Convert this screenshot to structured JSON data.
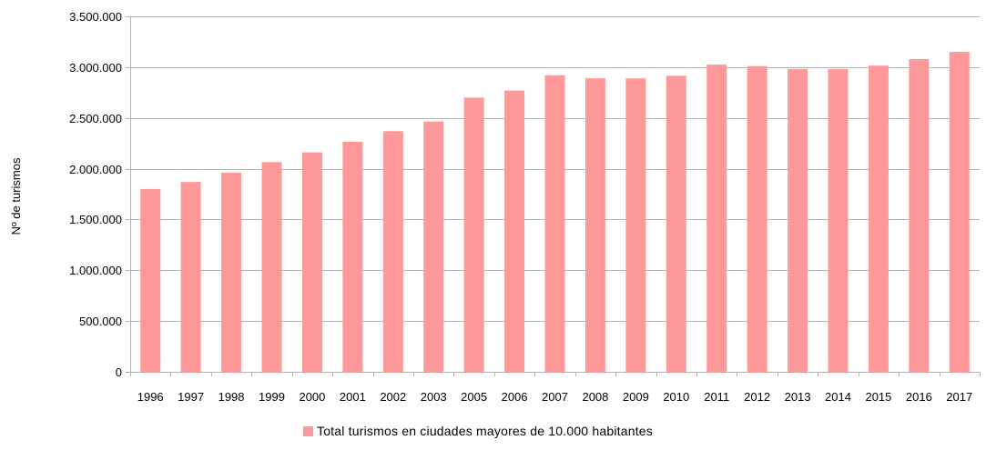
{
  "chart_data": {
    "type": "bar",
    "ylabel": "Nº de turismos",
    "categories": [
      "1996",
      "1997",
      "1998",
      "1999",
      "2000",
      "2001",
      "2002",
      "2003",
      "2005",
      "2006",
      "2007",
      "2008",
      "2009",
      "2010",
      "2011",
      "2012",
      "2013",
      "2014",
      "2015",
      "2016",
      "2017"
    ],
    "series": [
      {
        "name": "Total turismos en ciudades mayores de 10.000 habitantes",
        "color": "#ff9999",
        "values": [
          1800000,
          1870000,
          1960000,
          2065000,
          2160000,
          2265000,
          2370000,
          2465000,
          2700000,
          2770000,
          2920000,
          2890000,
          2890000,
          2915000,
          3025000,
          3010000,
          2980000,
          2980000,
          3015000,
          3080000,
          3150000
        ]
      }
    ],
    "ylim": [
      0,
      3500000
    ],
    "yticks": [
      0,
      500000,
      1000000,
      1500000,
      2000000,
      2500000,
      3000000,
      3500000
    ],
    "ytick_labels": [
      "0",
      "500.000",
      "1.000.000",
      "1.500.000",
      "2.000.000",
      "2.500.000",
      "3.000.000",
      "3.500.000"
    ],
    "grid": true,
    "legend_position": "bottom-center",
    "colors": {
      "bar": "#ff9999",
      "grid": "#b3b3b3",
      "axis": "#b3b3b3",
      "text": "#000000"
    }
  }
}
